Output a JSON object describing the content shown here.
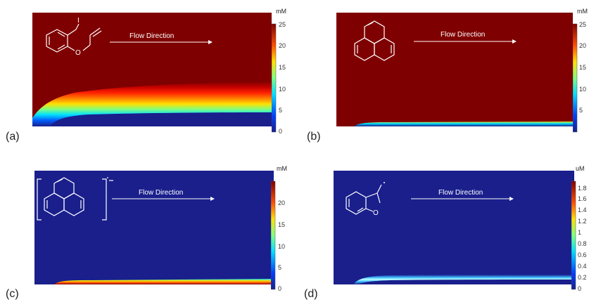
{
  "panels": [
    {
      "id": "a",
      "label": "(a)",
      "flow_label": "Flow Direction",
      "molecule": "allyl-2-iodophenyl-ether",
      "field": "high-concentration-with-lower-depletion-boundary-layer",
      "colorbar": {
        "unit": "mM",
        "ticks": [
          "0",
          "5",
          "10",
          "15",
          "20",
          "25"
        ],
        "range": [
          0,
          25
        ]
      }
    },
    {
      "id": "b",
      "label": "(b)",
      "flow_label": "Flow Direction",
      "molecule": "phenanthrene",
      "field": "high-concentration-with-thin-depletion-strip",
      "colorbar": {
        "unit": "mM",
        "ticks": [
          "5",
          "10",
          "15",
          "20",
          "25"
        ],
        "range": [
          0,
          25
        ]
      }
    },
    {
      "id": "c",
      "label": "(c)",
      "flow_label": "Flow Direction",
      "molecule": "phenanthrene-radical-anion",
      "field": "low-concentration-with-thin-bright-strip",
      "colorbar": {
        "unit": "mM",
        "ticks": [
          "0",
          "5",
          "10",
          "15",
          "20"
        ],
        "range": [
          0,
          25
        ]
      }
    },
    {
      "id": "d",
      "label": "(d)",
      "flow_label": "Flow Direction",
      "molecule": "dihydrobenzofuranyl-methyl-radical",
      "field": "low-concentration-with-thin-cyan-strip",
      "colorbar": {
        "unit": "uM",
        "ticks": [
          "0",
          "0.2",
          "0.4",
          "0.6",
          "0.8",
          "1",
          "1.2",
          "1.4",
          "1.6",
          "1.8"
        ],
        "range": [
          0,
          1.9
        ]
      }
    }
  ],
  "colors": {
    "dark_red": "#7f0000",
    "dark_blue": "#1a1f8c",
    "flow_arrow": "#ffffff"
  }
}
